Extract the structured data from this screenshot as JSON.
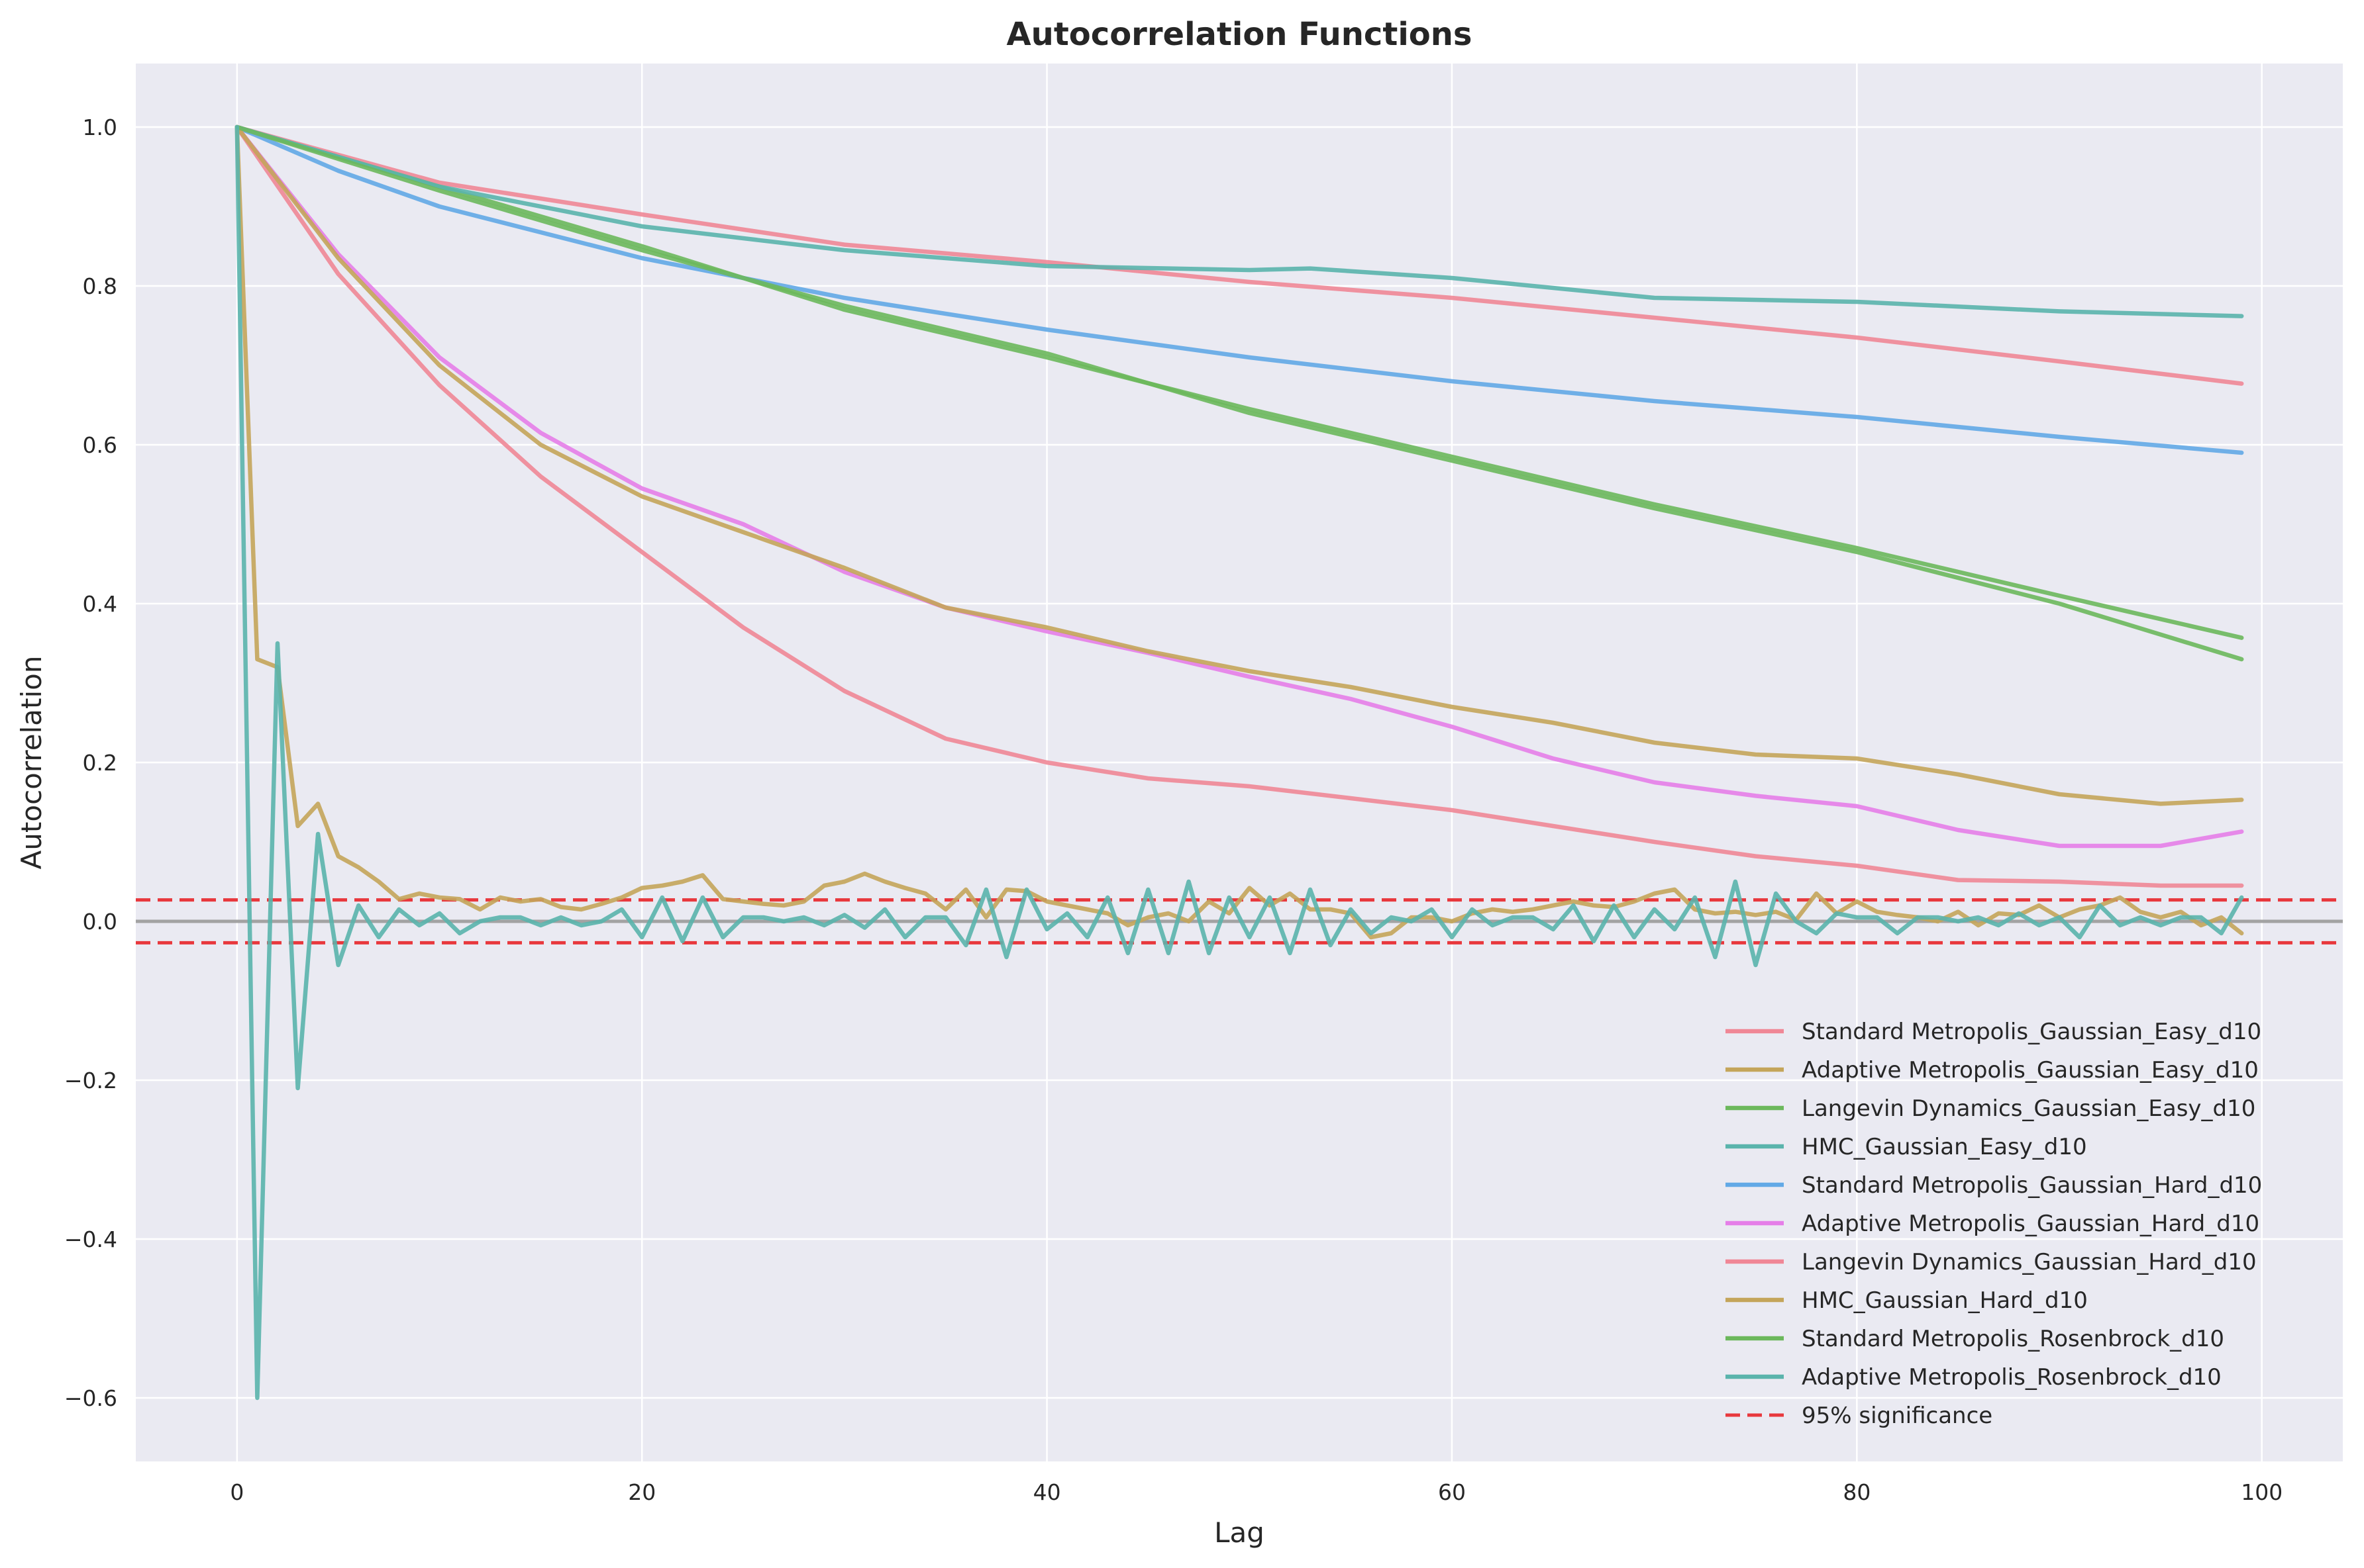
{
  "chart_data": {
    "type": "line",
    "title": "Autocorrelation Functions",
    "xlabel": "Lag",
    "ylabel": "Autocorrelation",
    "xlim": [
      -5,
      104
    ],
    "ylim": [
      -0.68,
      1.08
    ],
    "xticks": [
      0,
      20,
      40,
      60,
      80,
      100
    ],
    "yticks": [
      -0.6,
      -0.4,
      -0.2,
      0.0,
      0.2,
      0.4,
      0.6,
      0.8,
      1.0
    ],
    "xtick_labels": [
      "0",
      "20",
      "40",
      "60",
      "80",
      "100"
    ],
    "ytick_labels": [
      "−0.6",
      "−0.4",
      "−0.2",
      "0.0",
      "0.2",
      "0.4",
      "0.6",
      "0.8",
      "1.0"
    ],
    "grid": true,
    "legend_position": "bottom-right",
    "significance_level": 0.027,
    "significance_label": "95% significance",
    "significance_color": "#e8383d",
    "zero_line_color": "#999999",
    "background_color": "#eaeaf2",
    "series": [
      {
        "name": "Standard Metropolis_Gaussian_Easy_d10",
        "color": "#f08796",
        "x": [
          0,
          10,
          20,
          30,
          40,
          50,
          60,
          70,
          80,
          90,
          99
        ],
        "y": [
          1.0,
          0.93,
          0.89,
          0.852,
          0.83,
          0.805,
          0.785,
          0.76,
          0.735,
          0.705,
          0.677
        ]
      },
      {
        "name": "Adaptive Metropolis_Gaussian_Easy_d10",
        "color": "#c4a55a",
        "x": [
          0,
          1,
          2,
          3,
          4,
          5,
          6,
          7,
          8,
          9,
          10,
          11,
          12,
          13,
          14,
          15,
          16,
          17,
          18,
          19,
          20,
          21,
          22,
          23,
          24,
          25,
          26,
          27,
          28,
          29,
          30,
          31,
          32,
          33,
          34,
          35,
          36,
          37,
          38,
          39,
          40,
          41,
          42,
          43,
          44,
          45,
          46,
          47,
          48,
          49,
          50,
          51,
          52,
          53,
          54,
          55,
          56,
          57,
          58,
          59,
          60,
          61,
          62,
          63,
          64,
          65,
          66,
          67,
          68,
          69,
          70,
          71,
          72,
          73,
          74,
          75,
          76,
          77,
          78,
          79,
          80,
          81,
          82,
          83,
          84,
          85,
          86,
          87,
          88,
          89,
          90,
          91,
          92,
          93,
          94,
          95,
          96,
          97,
          98,
          99
        ],
        "y": [
          1.0,
          0.33,
          0.32,
          0.12,
          0.148,
          0.082,
          0.068,
          0.05,
          0.028,
          0.035,
          0.03,
          0.028,
          0.015,
          0.03,
          0.025,
          0.028,
          0.018,
          0.015,
          0.022,
          0.03,
          0.042,
          0.045,
          0.05,
          0.058,
          0.028,
          0.025,
          0.022,
          0.02,
          0.025,
          0.045,
          0.05,
          0.06,
          0.05,
          0.042,
          0.035,
          0.015,
          0.04,
          0.005,
          0.04,
          0.038,
          0.025,
          0.02,
          0.015,
          0.01,
          -0.005,
          0.005,
          0.01,
          0.0,
          0.025,
          0.01,
          0.042,
          0.02,
          0.035,
          0.015,
          0.015,
          0.01,
          -0.02,
          -0.015,
          0.005,
          0.005,
          0.0,
          0.01,
          0.015,
          0.012,
          0.015,
          0.02,
          0.025,
          0.02,
          0.018,
          0.025,
          0.035,
          0.04,
          0.015,
          0.01,
          0.012,
          0.008,
          0.012,
          0.002,
          0.035,
          0.01,
          0.025,
          0.012,
          0.008,
          0.005,
          0.0,
          0.012,
          -0.005,
          0.01,
          0.008,
          0.02,
          0.005,
          0.015,
          0.02,
          0.03,
          0.012,
          0.005,
          0.012,
          -0.005,
          0.005,
          -0.015
        ]
      },
      {
        "name": "Langevin Dynamics_Gaussian_Easy_d10",
        "color": "#6cb85c",
        "x": [
          0,
          10,
          20,
          30,
          40,
          50,
          60,
          70,
          80,
          90,
          99
        ],
        "y": [
          1.0,
          0.925,
          0.85,
          0.77,
          0.71,
          0.645,
          0.585,
          0.525,
          0.47,
          0.41,
          0.357
        ]
      },
      {
        "name": "HMC_Gaussian_Easy_d10",
        "color": "#5ab4ac",
        "x": [
          0,
          10,
          20,
          30,
          40,
          50,
          53,
          60,
          70,
          80,
          90,
          99
        ],
        "y": [
          1.0,
          0.925,
          0.875,
          0.845,
          0.825,
          0.82,
          0.822,
          0.81,
          0.785,
          0.78,
          0.768,
          0.762
        ]
      },
      {
        "name": "Standard Metropolis_Gaussian_Hard_d10",
        "color": "#62a9e6",
        "x": [
          0,
          5,
          10,
          20,
          30,
          40,
          50,
          60,
          70,
          80,
          90,
          99
        ],
        "y": [
          1.0,
          0.945,
          0.9,
          0.835,
          0.785,
          0.745,
          0.71,
          0.68,
          0.655,
          0.635,
          0.61,
          0.59
        ]
      },
      {
        "name": "Adaptive Metropolis_Gaussian_Hard_d10",
        "color": "#e57ee8",
        "x": [
          0,
          5,
          10,
          15,
          20,
          25,
          30,
          35,
          40,
          45,
          50,
          55,
          60,
          65,
          70,
          75,
          80,
          85,
          90,
          95,
          99
        ],
        "y": [
          1.0,
          0.84,
          0.71,
          0.615,
          0.545,
          0.5,
          0.44,
          0.395,
          0.365,
          0.338,
          0.308,
          0.28,
          0.245,
          0.205,
          0.175,
          0.158,
          0.145,
          0.115,
          0.095,
          0.095,
          0.113
        ]
      },
      {
        "name": "Langevin Dynamics_Gaussian_Hard_d10",
        "color": "#f08796",
        "x": [
          0,
          5,
          10,
          15,
          20,
          25,
          30,
          35,
          40,
          45,
          50,
          55,
          60,
          65,
          70,
          75,
          80,
          85,
          90,
          95,
          99
        ],
        "y": [
          1.0,
          0.815,
          0.675,
          0.56,
          0.465,
          0.37,
          0.29,
          0.23,
          0.2,
          0.18,
          0.17,
          0.155,
          0.14,
          0.12,
          0.1,
          0.082,
          0.07,
          0.052,
          0.05,
          0.045,
          0.045
        ]
      },
      {
        "name": "HMC_Gaussian_Hard_d10",
        "color": "#c4a55a",
        "x": [
          0,
          5,
          10,
          15,
          20,
          25,
          30,
          35,
          40,
          45,
          50,
          55,
          60,
          65,
          70,
          75,
          80,
          85,
          90,
          95,
          99
        ],
        "y": [
          1.0,
          0.835,
          0.7,
          0.6,
          0.535,
          0.49,
          0.445,
          0.395,
          0.37,
          0.34,
          0.315,
          0.295,
          0.27,
          0.25,
          0.225,
          0.21,
          0.205,
          0.185,
          0.16,
          0.148,
          0.153
        ]
      },
      {
        "name": "Standard Metropolis_Rosenbrock_d10",
        "color": "#6cb85c",
        "x": [
          0,
          10,
          20,
          30,
          40,
          50,
          60,
          70,
          80,
          90,
          99
        ],
        "y": [
          1.0,
          0.92,
          0.845,
          0.775,
          0.715,
          0.64,
          0.58,
          0.52,
          0.465,
          0.4,
          0.33
        ]
      },
      {
        "name": "Adaptive Metropolis_Rosenbrock_d10",
        "color": "#5ab4ac",
        "x": [
          0,
          1,
          2,
          3,
          4,
          5,
          6,
          7,
          8,
          9,
          10,
          11,
          12,
          13,
          14,
          15,
          16,
          17,
          18,
          19,
          20,
          21,
          22,
          23,
          24,
          25,
          26,
          27,
          28,
          29,
          30,
          31,
          32,
          33,
          34,
          35,
          36,
          37,
          38,
          39,
          40,
          41,
          42,
          43,
          44,
          45,
          46,
          47,
          48,
          49,
          50,
          51,
          52,
          53,
          54,
          55,
          56,
          57,
          58,
          59,
          60,
          61,
          62,
          63,
          64,
          65,
          66,
          67,
          68,
          69,
          70,
          71,
          72,
          73,
          74,
          75,
          76,
          77,
          78,
          79,
          80,
          81,
          82,
          83,
          84,
          85,
          86,
          87,
          88,
          89,
          90,
          91,
          92,
          93,
          94,
          95,
          96,
          97,
          98,
          99
        ],
        "y": [
          1.0,
          -0.6,
          0.35,
          -0.21,
          0.11,
          -0.055,
          0.02,
          -0.02,
          0.015,
          -0.005,
          0.01,
          -0.015,
          0.0,
          0.005,
          0.005,
          -0.005,
          0.005,
          -0.005,
          0.0,
          0.015,
          -0.02,
          0.03,
          -0.025,
          0.03,
          -0.02,
          0.005,
          0.005,
          0.0,
          0.005,
          -0.005,
          0.008,
          -0.008,
          0.015,
          -0.02,
          0.005,
          0.005,
          -0.03,
          0.04,
          -0.045,
          0.04,
          -0.01,
          0.01,
          -0.02,
          0.03,
          -0.04,
          0.04,
          -0.04,
          0.05,
          -0.04,
          0.03,
          -0.02,
          0.03,
          -0.04,
          0.04,
          -0.03,
          0.015,
          -0.015,
          0.005,
          0.0,
          0.015,
          -0.02,
          0.015,
          -0.005,
          0.005,
          0.005,
          -0.01,
          0.02,
          -0.025,
          0.02,
          -0.02,
          0.015,
          -0.01,
          0.03,
          -0.045,
          0.05,
          -0.055,
          0.035,
          0.0,
          -0.015,
          0.01,
          0.005,
          0.005,
          -0.015,
          0.005,
          0.005,
          0.0,
          0.005,
          -0.005,
          0.01,
          -0.005,
          0.005,
          -0.02,
          0.02,
          -0.005,
          0.005,
          -0.005,
          0.005,
          0.005,
          -0.015,
          0.03
        ]
      }
    ]
  }
}
